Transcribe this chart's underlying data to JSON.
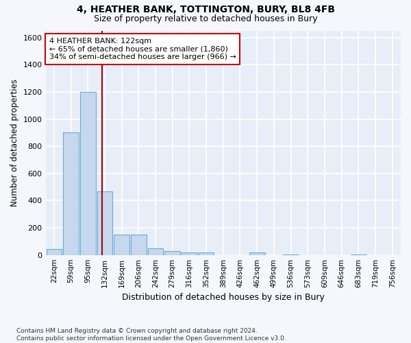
{
  "title": "4, HEATHER BANK, TOTTINGTON, BURY, BL8 4FB",
  "subtitle": "Size of property relative to detached houses in Bury",
  "xlabel": "Distribution of detached houses by size in Bury",
  "ylabel": "Number of detached properties",
  "bar_color": "#c5d8ee",
  "bar_edge_color": "#6aaad4",
  "background_color": "#e8eef8",
  "grid_color": "#ffffff",
  "categories": [
    "22sqm",
    "59sqm",
    "95sqm",
    "132sqm",
    "169sqm",
    "206sqm",
    "242sqm",
    "279sqm",
    "316sqm",
    "352sqm",
    "389sqm",
    "426sqm",
    "462sqm",
    "499sqm",
    "536sqm",
    "573sqm",
    "609sqm",
    "646sqm",
    "683sqm",
    "719sqm",
    "756sqm"
  ],
  "values": [
    45,
    900,
    1200,
    470,
    150,
    150,
    50,
    30,
    20,
    20,
    0,
    0,
    20,
    0,
    5,
    0,
    0,
    0,
    5,
    0,
    0
  ],
  "ylim": [
    0,
    1650
  ],
  "yticks": [
    0,
    200,
    400,
    600,
    800,
    1000,
    1200,
    1400,
    1600
  ],
  "property_line_x": 2.85,
  "annotation_text": "4 HEATHER BANK: 122sqm\n← 65% of detached houses are smaller (1,860)\n34% of semi-detached houses are larger (966) →",
  "annotation_box_color": "#ffffff",
  "annotation_box_edge": "#cc0000",
  "vline_color": "#aa0000",
  "footnote": "Contains HM Land Registry data © Crown copyright and database right 2024.\nContains public sector information licensed under the Open Government Licence v3.0.",
  "fig_bg": "#f5f7fc"
}
